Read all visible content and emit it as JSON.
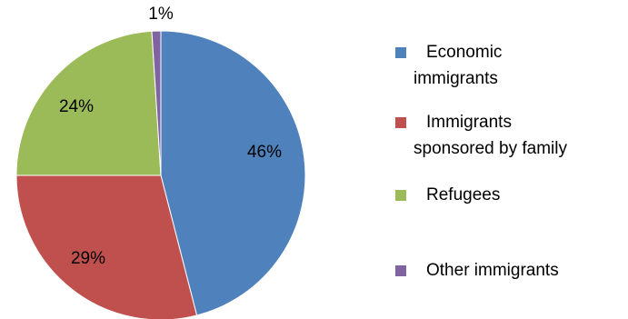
{
  "chart_data": {
    "type": "pie",
    "title": "",
    "slices": [
      {
        "name": "Economic immigrants",
        "value": 46,
        "label": "46%",
        "color": "#4F81BD"
      },
      {
        "name": "Immigrants sponsored by family",
        "value": 29,
        "label": "29%",
        "color": "#C0504D"
      },
      {
        "name": "Refugees",
        "value": 24,
        "label": "24%",
        "color": "#9BBB59"
      },
      {
        "name": "Other immigrants",
        "value": 1,
        "label": "1%",
        "color": "#8064A2"
      }
    ],
    "start_angle_deg": 0,
    "direction": "clockwise",
    "legend": {
      "position": "right",
      "entries": [
        {
          "lines": [
            "Economic",
            "immigrants"
          ]
        },
        {
          "lines": [
            "Immigrants",
            "sponsored by family"
          ]
        },
        {
          "lines": [
            "Refugees"
          ]
        },
        {
          "lines": [
            "Other immigrants"
          ]
        }
      ]
    }
  }
}
